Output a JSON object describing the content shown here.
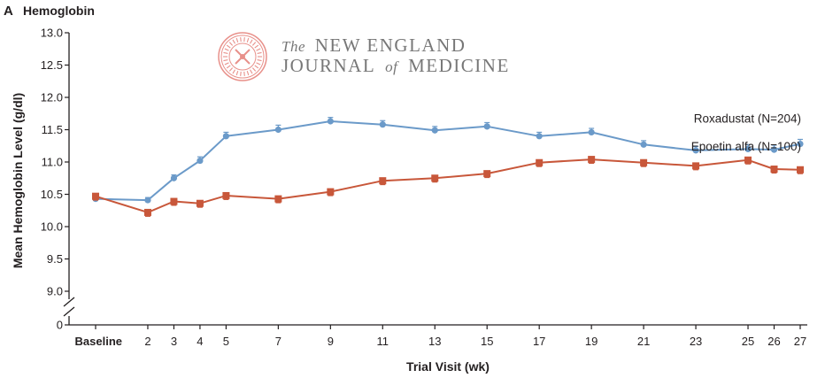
{
  "panel": {
    "letter": "A",
    "title": "Hemoglobin"
  },
  "watermark": {
    "line1_prefix": "The",
    "line1_main": "NEW ENGLAND",
    "line2_a": "JOURNAL",
    "line2_of": "of",
    "line2_b": "MEDICINE",
    "seal_color": "#e8908a",
    "text_color": "#777777"
  },
  "chart_data": {
    "type": "line",
    "title": "Hemoglobin",
    "xlabel": "Trial Visit (wk)",
    "ylabel": "Mean Hemoglobin Level (g/dl)",
    "ylim": [
      9.0,
      13.0
    ],
    "y_axis_break": true,
    "yticks": [
      "13.0",
      "12.5",
      "12.0",
      "11.5",
      "11.0",
      "10.5",
      "10.0",
      "9.5",
      "9.0",
      "0"
    ],
    "x_positions": [
      0,
      2,
      3,
      4,
      5,
      7,
      9,
      11,
      13,
      15,
      17,
      19,
      21,
      23,
      25,
      26,
      27
    ],
    "x": [
      "Baseline",
      "2",
      "3",
      "4",
      "5",
      "7",
      "9",
      "11",
      "13",
      "15",
      "17",
      "19",
      "21",
      "23",
      "25",
      "26",
      "27"
    ],
    "grid": false,
    "series": [
      {
        "name": "Roxadustat (N=204)",
        "color": "#6b9ac9",
        "marker": "circle",
        "values": [
          10.43,
          10.41,
          10.75,
          11.02,
          11.4,
          11.5,
          11.63,
          11.58,
          11.49,
          11.55,
          11.4,
          11.46,
          11.27,
          11.18,
          11.2,
          11.19,
          11.28
        ],
        "error": [
          0.04,
          0.04,
          0.05,
          0.06,
          0.06,
          0.07,
          0.06,
          0.06,
          0.06,
          0.06,
          0.06,
          0.06,
          0.06,
          0.06,
          0.07,
          0.07,
          0.07
        ]
      },
      {
        "name": "Epoetin alfa (N=100)",
        "color": "#c8573a",
        "marker": "square",
        "values": [
          10.47,
          10.22,
          10.39,
          10.36,
          10.48,
          10.43,
          10.54,
          10.71,
          10.75,
          10.82,
          10.99,
          11.04,
          10.99,
          10.94,
          11.03,
          10.89,
          10.88
        ]
      }
    ]
  }
}
